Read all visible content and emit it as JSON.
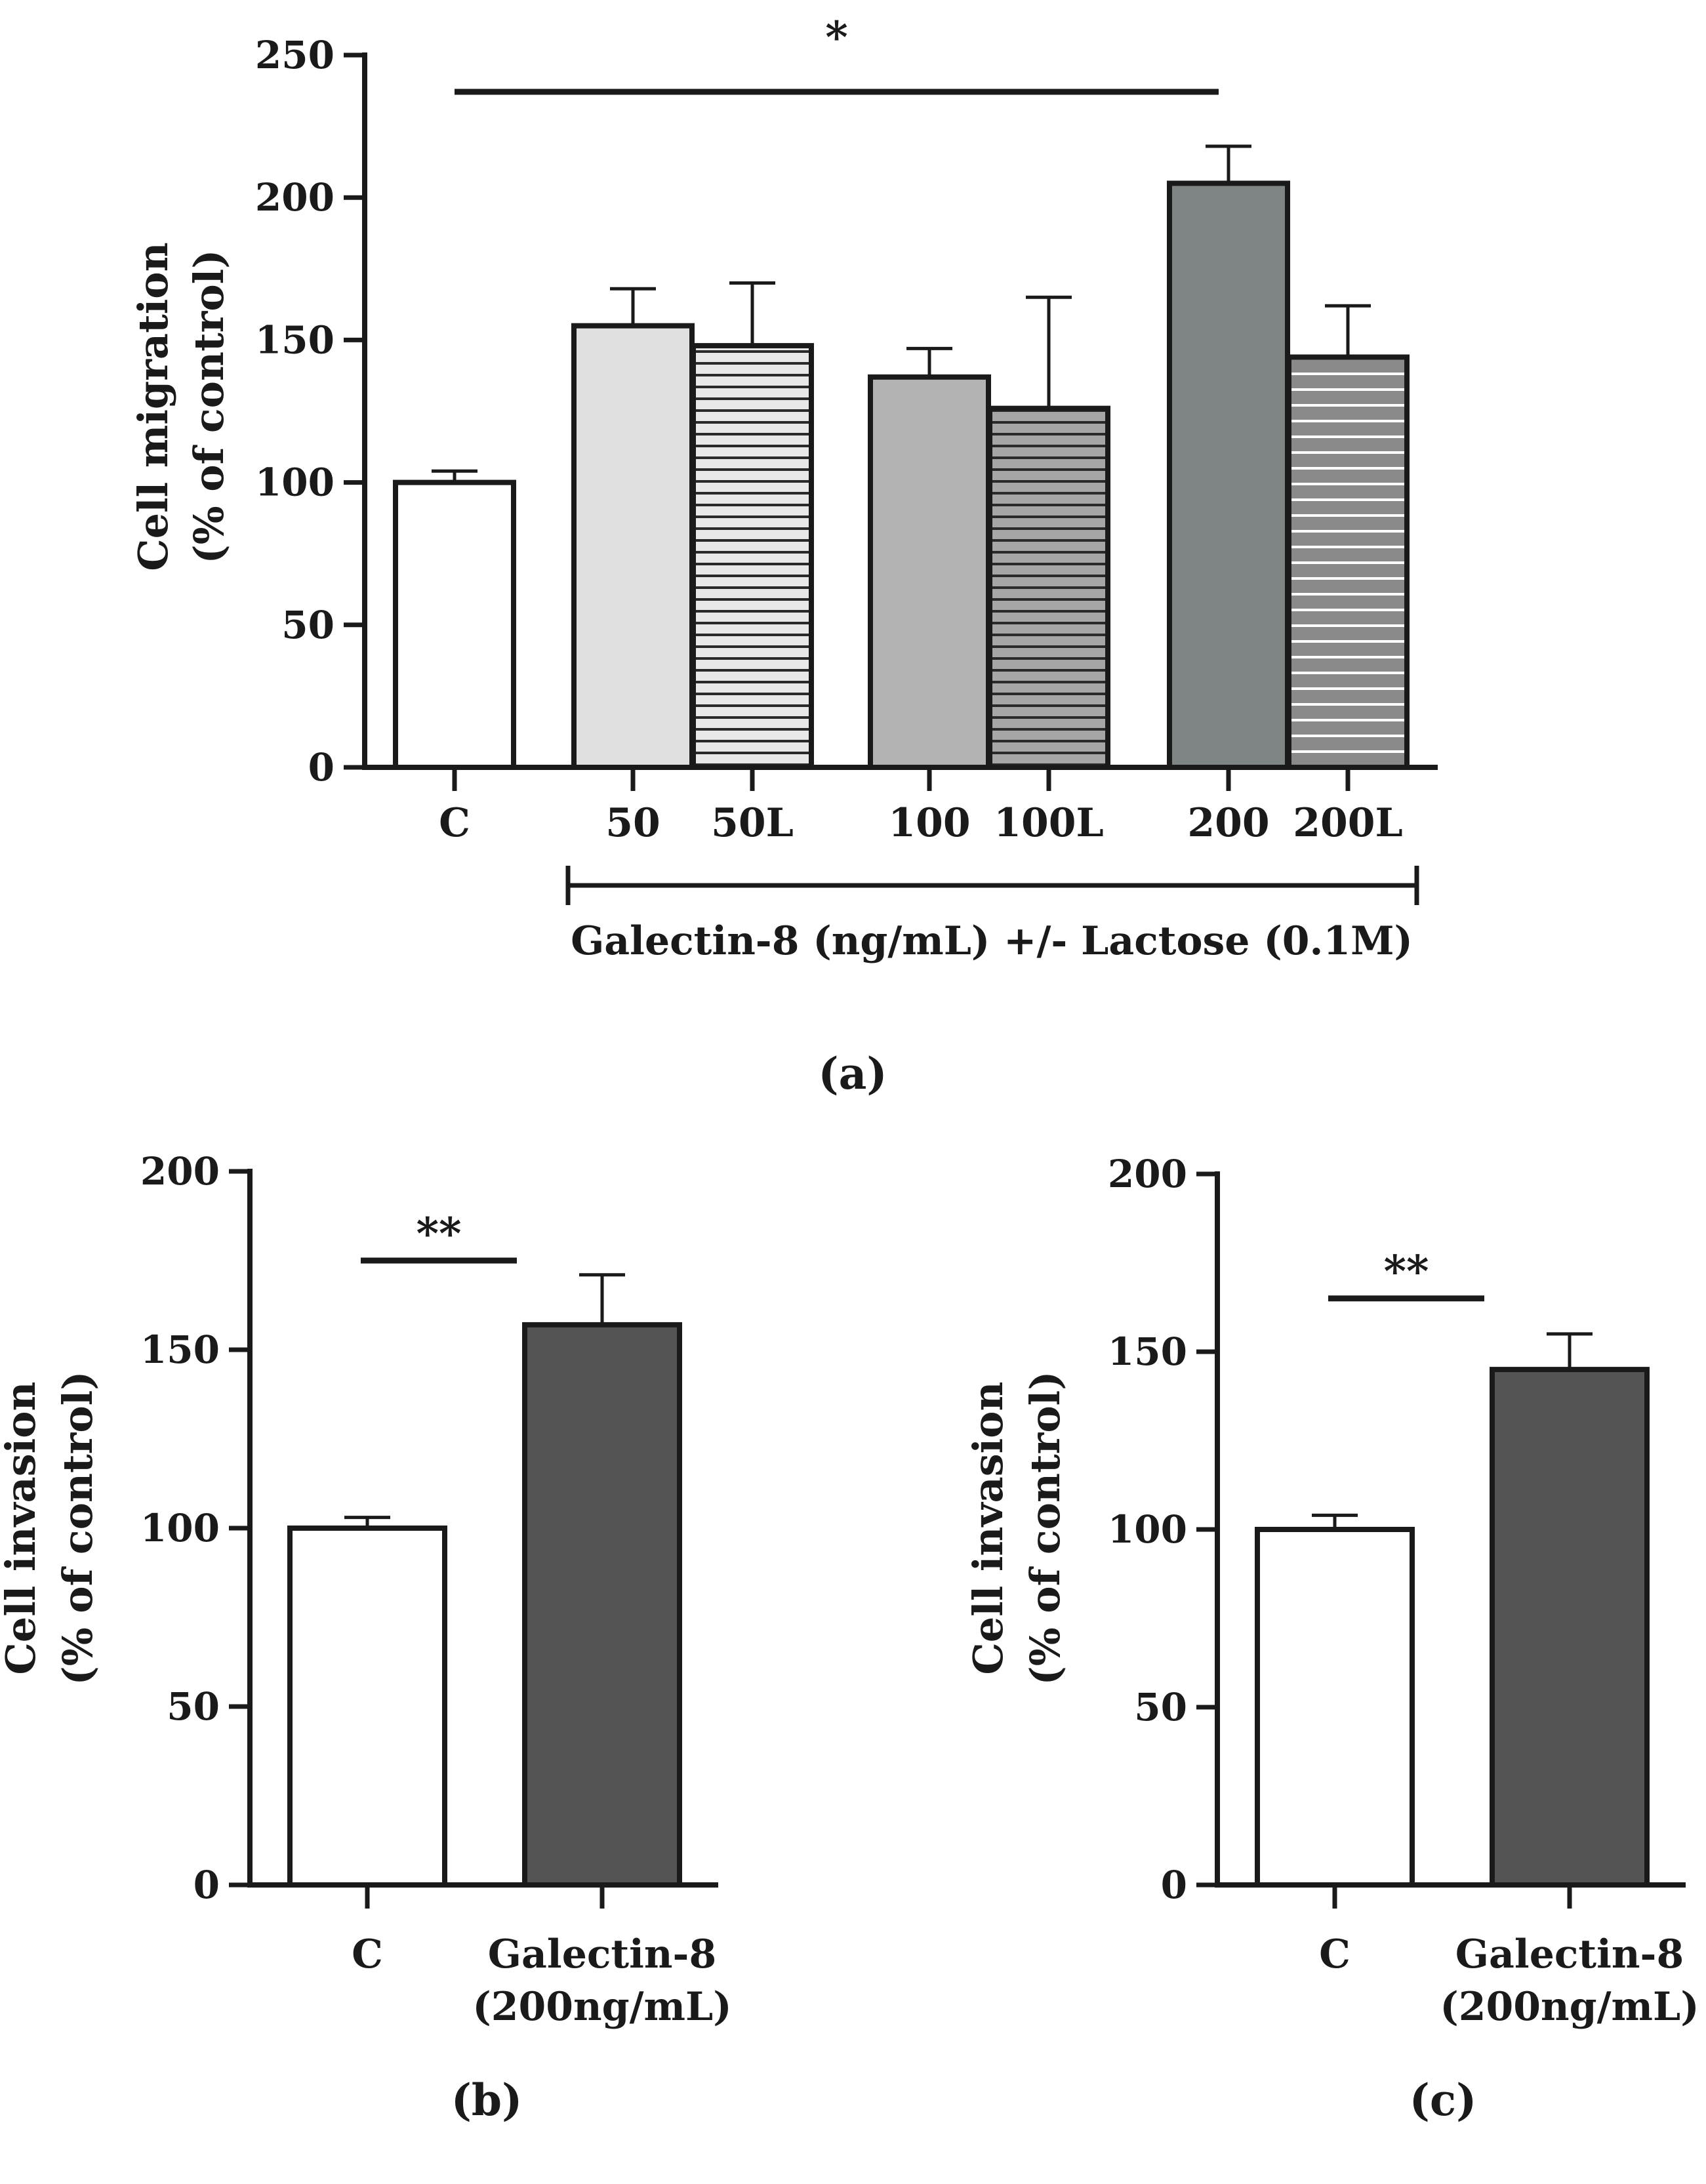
{
  "chart_data": [
    {
      "panel": "(a)",
      "type": "bar",
      "categories": [
        "C",
        "50",
        "50L",
        "100",
        "100L",
        "200",
        "200L"
      ],
      "values": [
        100,
        155,
        148,
        137,
        126,
        205,
        144
      ],
      "errors": [
        4,
        13,
        22,
        10,
        39,
        13,
        18
      ],
      "fills": [
        "#ffffff",
        "#e0e0e0",
        "#e8e8e8",
        "#b3b3b3",
        "#a6a6a6",
        "#7f8484",
        "#8a8a8a"
      ],
      "stripe_colors": [
        "",
        "",
        "#2a2a2a",
        "",
        "#2a2a2a",
        "",
        "#ffffff"
      ],
      "ylabel": [
        "Cell migration",
        "(% of control)"
      ],
      "ylim": [
        0,
        250
      ],
      "yticks": [
        0,
        50,
        100,
        150,
        200,
        250
      ],
      "ytick_labels": [
        "0",
        "50",
        "100",
        "150",
        "200",
        "250"
      ],
      "bracket_label": "Galectin-8 (ng/mL)  +/- Lactose (0.1M)",
      "significance": {
        "from": "C",
        "to": "200",
        "label": "*"
      }
    },
    {
      "panel": "(b)",
      "type": "bar",
      "categories": [
        "C",
        "Galectin-8"
      ],
      "category_sublabels": [
        "",
        "(200ng/mL)"
      ],
      "values": [
        100,
        157
      ],
      "errors": [
        3,
        14
      ],
      "fills": [
        "#ffffff",
        "#545454"
      ],
      "ylabel": [
        "Cell invasion",
        "(% of control)"
      ],
      "ylim": [
        0,
        200
      ],
      "yticks": [
        0,
        50,
        100,
        150,
        200
      ],
      "ytick_labels": [
        "0",
        "50",
        "100",
        "150",
        "200"
      ],
      "significance": {
        "from": "C",
        "to": "Galectin-8",
        "label": "**",
        "level": 175
      }
    },
    {
      "panel": "(c)",
      "type": "bar",
      "categories": [
        "C",
        "Galectin-8"
      ],
      "category_sublabels": [
        "",
        "(200ng/mL)"
      ],
      "values": [
        100,
        145
      ],
      "errors": [
        4,
        10
      ],
      "fills": [
        "#ffffff",
        "#545454"
      ],
      "ylabel": [
        "Cell invasion",
        "(% of control)"
      ],
      "ylim": [
        0,
        200
      ],
      "yticks": [
        0,
        50,
        100,
        150,
        200
      ],
      "ytick_labels": [
        "0",
        "50",
        "100",
        "150",
        "200"
      ],
      "significance": {
        "from": "C",
        "to": "Galectin-8",
        "label": "**",
        "level": 165
      }
    }
  ]
}
